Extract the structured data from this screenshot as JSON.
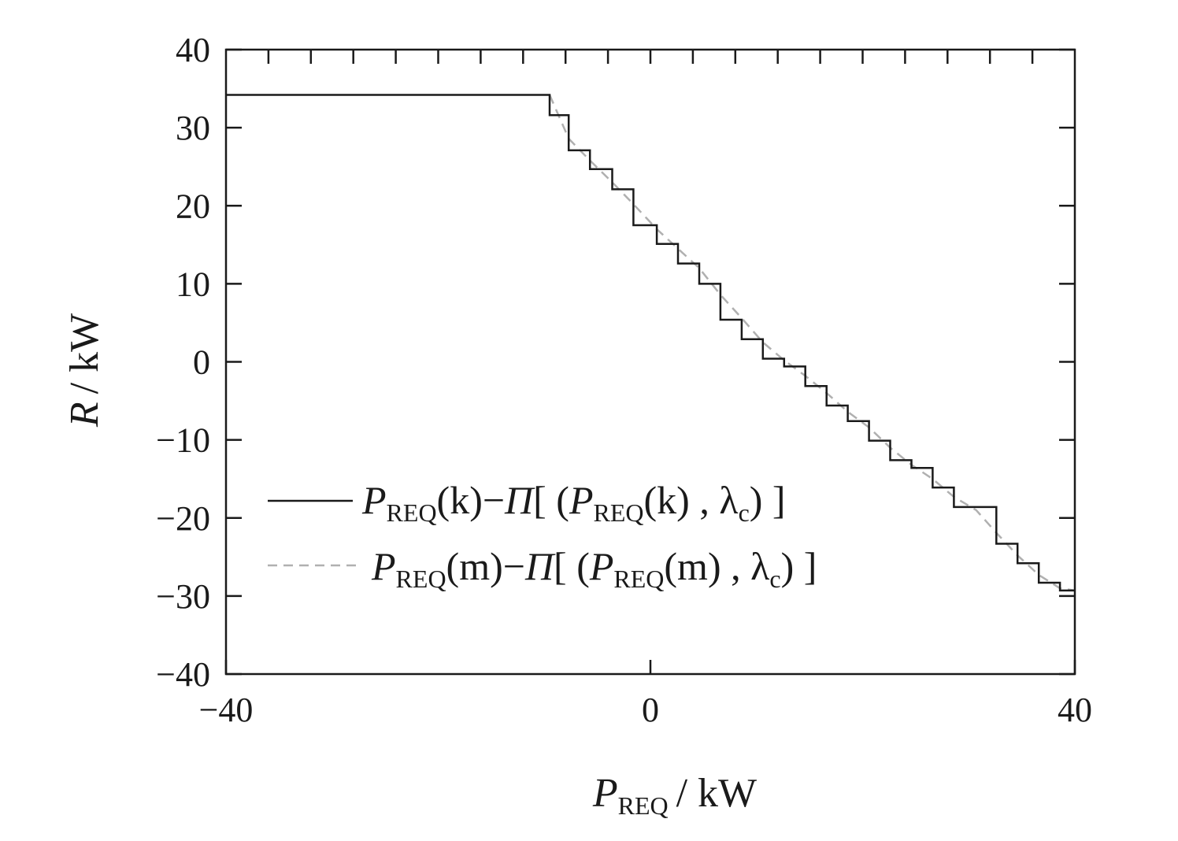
{
  "chart_data": {
    "type": "line",
    "xlabel": {
      "var": "P",
      "sub": "REQ",
      "unit": "/ kW"
    },
    "ylabel": {
      "var": "R",
      "unit": "/ kW"
    },
    "xlim": [
      -40,
      40
    ],
    "ylim": [
      -40,
      40
    ],
    "xticks": [
      -40,
      0,
      40
    ],
    "xtick_labels": [
      "−40",
      "0",
      "40"
    ],
    "yticks": [
      40,
      30,
      20,
      10,
      0,
      -10,
      -20,
      -30,
      -40
    ],
    "ytick_labels": [
      "40",
      "30",
      "20",
      "10",
      "0",
      "−10",
      "−20",
      "−30",
      "−40"
    ],
    "minor_xtick_step": 4,
    "grid": false,
    "legend_position": "left",
    "series": [
      {
        "name": "P_REQ(k)−Π[(P_REQ(k), λc)]",
        "legend": {
          "p1": "P",
          "s1": "REQ",
          "a1": "(k)−",
          "pi": "Π",
          "b1": "[ (",
          "p2": "P",
          "s2": "REQ",
          "a2": "(k) , ",
          "lam": "λ",
          "s3": "c",
          "end": ") ]"
        },
        "style": "solid",
        "color": "#1a1a1a",
        "x": [
          -40,
          -9.5,
          -9.5,
          -7.7,
          -7.7,
          -5.7,
          -5.7,
          -3.6,
          -3.6,
          -1.6,
          -1.6,
          0.6,
          0.6,
          2.6,
          2.6,
          4.6,
          4.6,
          6.6,
          6.6,
          8.6,
          8.6,
          10.6,
          10.6,
          12.6,
          12.6,
          14.6,
          14.6,
          16.6,
          16.6,
          18.6,
          18.6,
          20.6,
          20.6,
          22.6,
          22.6,
          24.6,
          24.6,
          26.6,
          26.6,
          28.6,
          28.6,
          30.7,
          30.7,
          32.6,
          32.6,
          34.6,
          34.6,
          36.6,
          36.6,
          38.6,
          38.6,
          40
        ],
        "y": [
          34.2,
          34.2,
          31.6,
          31.6,
          27.1,
          27.1,
          24.7,
          24.7,
          22.1,
          22.1,
          17.5,
          17.5,
          15.1,
          15.1,
          12.6,
          12.6,
          10.0,
          10.0,
          5.4,
          5.4,
          2.9,
          2.9,
          0.4,
          0.4,
          -0.6,
          -0.6,
          -3.1,
          -3.1,
          -5.6,
          -5.6,
          -7.6,
          -7.6,
          -10.1,
          -10.1,
          -12.6,
          -12.6,
          -13.6,
          -13.6,
          -16.1,
          -16.1,
          -18.6,
          -18.6,
          -18.6,
          -18.6,
          -23.3,
          -23.3,
          -25.8,
          -25.8,
          -28.3,
          -28.3,
          -29.3,
          -29.3
        ]
      },
      {
        "name": "P_REQ(m)−Π[(P_REQ(m), λc)]",
        "legend": {
          "p1": "P",
          "s1": "REQ",
          "a1": "(m)−",
          "pi": "Π",
          "b1": "[ (",
          "p2": "P",
          "s2": "REQ",
          "a2": "(m) , ",
          "lam": "λ",
          "s3": "c",
          "end": ") ]"
        },
        "style": "dashed",
        "color": "#b0b0b0",
        "x": [
          -9.5,
          -7.7,
          -5.7,
          -3.6,
          -1.6,
          0.6,
          2.6,
          4.6,
          6.6,
          8.6,
          10.6,
          12.6,
          14.6,
          16.6,
          18.6,
          20.6,
          22.6,
          24.6,
          26.6,
          28.6,
          30.7,
          32.6,
          34.6,
          36.6,
          38.6,
          40
        ],
        "y": [
          34.2,
          28.6,
          25.8,
          23.0,
          20.2,
          17.0,
          14.5,
          12.0,
          8.6,
          5.6,
          2.5,
          0.2,
          -1.8,
          -4.0,
          -6.4,
          -8.4,
          -11.0,
          -13.2,
          -15.0,
          -17.3,
          -19.0,
          -21.9,
          -24.8,
          -27.3,
          -29.0,
          -29.3
        ]
      }
    ]
  }
}
